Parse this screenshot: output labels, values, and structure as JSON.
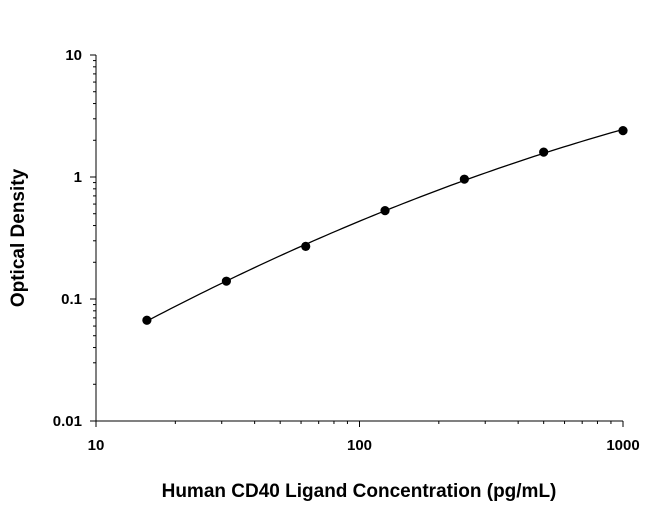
{
  "chart_data": {
    "type": "scatter",
    "xlabel": "Human CD40 Ligand Concentration (pg/mL)",
    "ylabel": "Optical Density",
    "x_scale": "log",
    "y_scale": "log",
    "xlim": [
      10,
      1000
    ],
    "ylim": [
      0.01,
      10
    ],
    "x_ticks": [
      "10",
      "100",
      "1000"
    ],
    "y_ticks": [
      "0.01",
      "0.1",
      "1",
      "10"
    ],
    "grid": false,
    "legend": "none",
    "fit_line": true,
    "series": [
      {
        "x": [
          15.6,
          31.25,
          62.5,
          125,
          250,
          500,
          1000
        ],
        "y": [
          0.067,
          0.14,
          0.27,
          0.53,
          0.96,
          1.6,
          2.4
        ]
      }
    ],
    "colors": {
      "marker": "#000000",
      "line": "#000000",
      "axis": "#000000"
    }
  }
}
